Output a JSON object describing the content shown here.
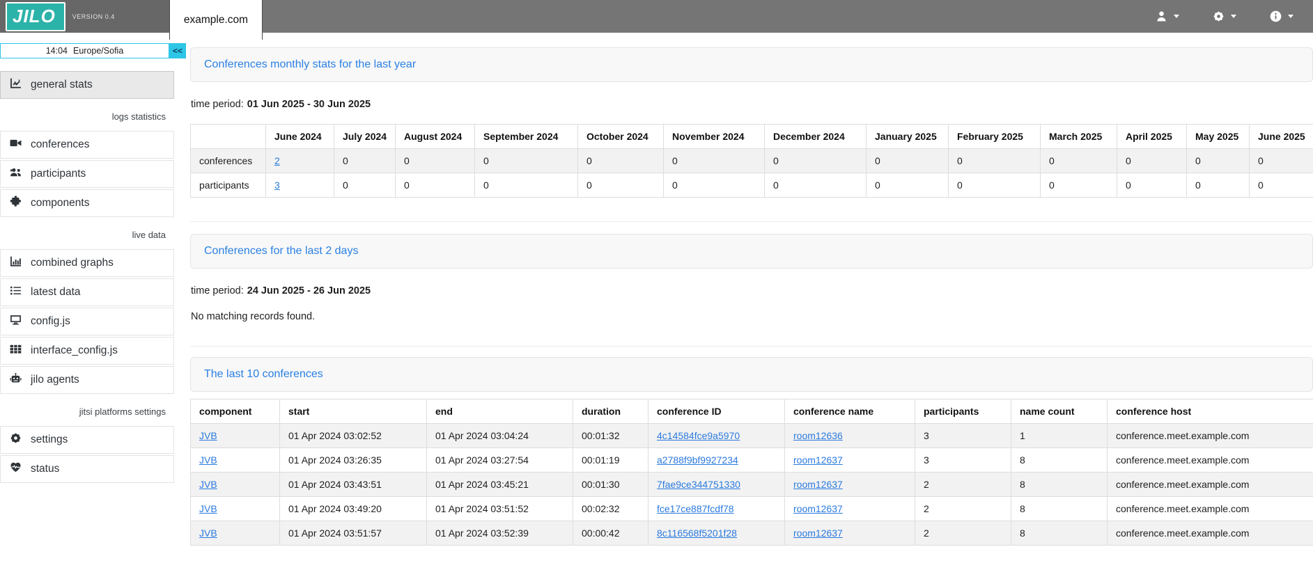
{
  "header": {
    "logo": "JILO",
    "version": "VERSION 0.4",
    "tab": "example.com",
    "menus": [
      {
        "name": "user-menu-button",
        "icon": "user-icon"
      },
      {
        "name": "settings-menu-button",
        "icon": "gear-icon"
      },
      {
        "name": "info-menu-button",
        "icon": "info-icon"
      }
    ]
  },
  "sidebar": {
    "clock": {
      "time": "14:04",
      "timezone": "Europe/Sofia",
      "collapse_label": "<<"
    },
    "items": [
      {
        "type": "item",
        "icon": "chart-line-icon",
        "label": "general stats",
        "active": true
      },
      {
        "type": "section",
        "label": "logs statistics"
      },
      {
        "type": "item",
        "icon": "video-icon",
        "label": "conferences"
      },
      {
        "type": "item",
        "icon": "users-icon",
        "label": "participants"
      },
      {
        "type": "item",
        "icon": "puzzle-icon",
        "label": "components"
      },
      {
        "type": "section",
        "label": "live data"
      },
      {
        "type": "item",
        "icon": "bar-chart-icon",
        "label": "combined graphs"
      },
      {
        "type": "item",
        "icon": "list-icon",
        "label": "latest data"
      },
      {
        "type": "item",
        "icon": "desktop-icon",
        "label": "config.js"
      },
      {
        "type": "item",
        "icon": "grid-icon",
        "label": "interface_config.js"
      },
      {
        "type": "item",
        "icon": "robot-icon",
        "label": "jilo agents"
      },
      {
        "type": "section",
        "label": "jitsi platforms settings"
      },
      {
        "type": "item",
        "icon": "gear-icon",
        "label": "settings"
      },
      {
        "type": "item",
        "icon": "heart-pulse-icon",
        "label": "status"
      }
    ]
  },
  "sections": {
    "monthly": {
      "title": "Conferences monthly stats for the last year",
      "time_period_label": "time period:",
      "time_period_value": "01 Jun 2025 - 30 Jun 2025",
      "table": {
        "columns": [
          "",
          "June 2024",
          "July 2024",
          "August 2024",
          "September 2024",
          "October 2024",
          "November 2024",
          "December 2024",
          "January 2025",
          "February 2025",
          "March 2025",
          "April 2025",
          "May 2025",
          "June 2025"
        ],
        "rows": [
          {
            "cells": [
              "conferences",
              "2",
              "0",
              "0",
              "0",
              "0",
              "0",
              "0",
              "0",
              "0",
              "0",
              "0",
              "0",
              "0"
            ],
            "links": [
              1
            ]
          },
          {
            "cells": [
              "participants",
              "3",
              "0",
              "0",
              "0",
              "0",
              "0",
              "0",
              "0",
              "0",
              "0",
              "0",
              "0",
              "0"
            ],
            "links": [
              1
            ]
          }
        ]
      }
    },
    "last2days": {
      "title": "Conferences for the last 2 days",
      "time_period_label": "time period:",
      "time_period_value": "24 Jun 2025 - 26 Jun 2025",
      "empty_message": "No matching records found."
    },
    "last10": {
      "title": "The last 10 conferences",
      "table": {
        "columns": [
          "component",
          "start",
          "end",
          "duration",
          "conference ID",
          "conference name",
          "participants",
          "name count",
          "conference host"
        ],
        "rows": [
          {
            "cells": [
              "JVB",
              "01 Apr 2024 03:02:52",
              "01 Apr 2024 03:04:24",
              "00:01:32",
              "4c14584fce9a5970",
              "room12636",
              "3",
              "1",
              "conference.meet.example.com"
            ],
            "links": [
              0,
              4,
              5
            ]
          },
          {
            "cells": [
              "JVB",
              "01 Apr 2024 03:26:35",
              "01 Apr 2024 03:27:54",
              "00:01:19",
              "a2788f9bf9927234",
              "room12637",
              "3",
              "8",
              "conference.meet.example.com"
            ],
            "links": [
              0,
              4,
              5
            ]
          },
          {
            "cells": [
              "JVB",
              "01 Apr 2024 03:43:51",
              "01 Apr 2024 03:45:21",
              "00:01:30",
              "7fae9ce344751330",
              "room12637",
              "2",
              "8",
              "conference.meet.example.com"
            ],
            "links": [
              0,
              4,
              5
            ]
          },
          {
            "cells": [
              "JVB",
              "01 Apr 2024 03:49:20",
              "01 Apr 2024 03:51:52",
              "00:02:32",
              "fce17ce887fcdf78",
              "room12637",
              "2",
              "8",
              "conference.meet.example.com"
            ],
            "links": [
              0,
              4,
              5
            ]
          },
          {
            "cells": [
              "JVB",
              "01 Apr 2024 03:51:57",
              "01 Apr 2024 03:52:39",
              "00:00:42",
              "8c116568f5201f28",
              "room12637",
              "2",
              "8",
              "conference.meet.example.com"
            ],
            "links": [
              0,
              4,
              5
            ]
          }
        ]
      }
    }
  },
  "colors": {
    "topbar_gray": "#757575",
    "topbar_dark_gray": "#676767",
    "brand_teal": "#2bb3a9",
    "accent_cyan": "#2ec6e6",
    "section_title_blue": "#2a80e2",
    "link_blue": "#2a7ade"
  }
}
